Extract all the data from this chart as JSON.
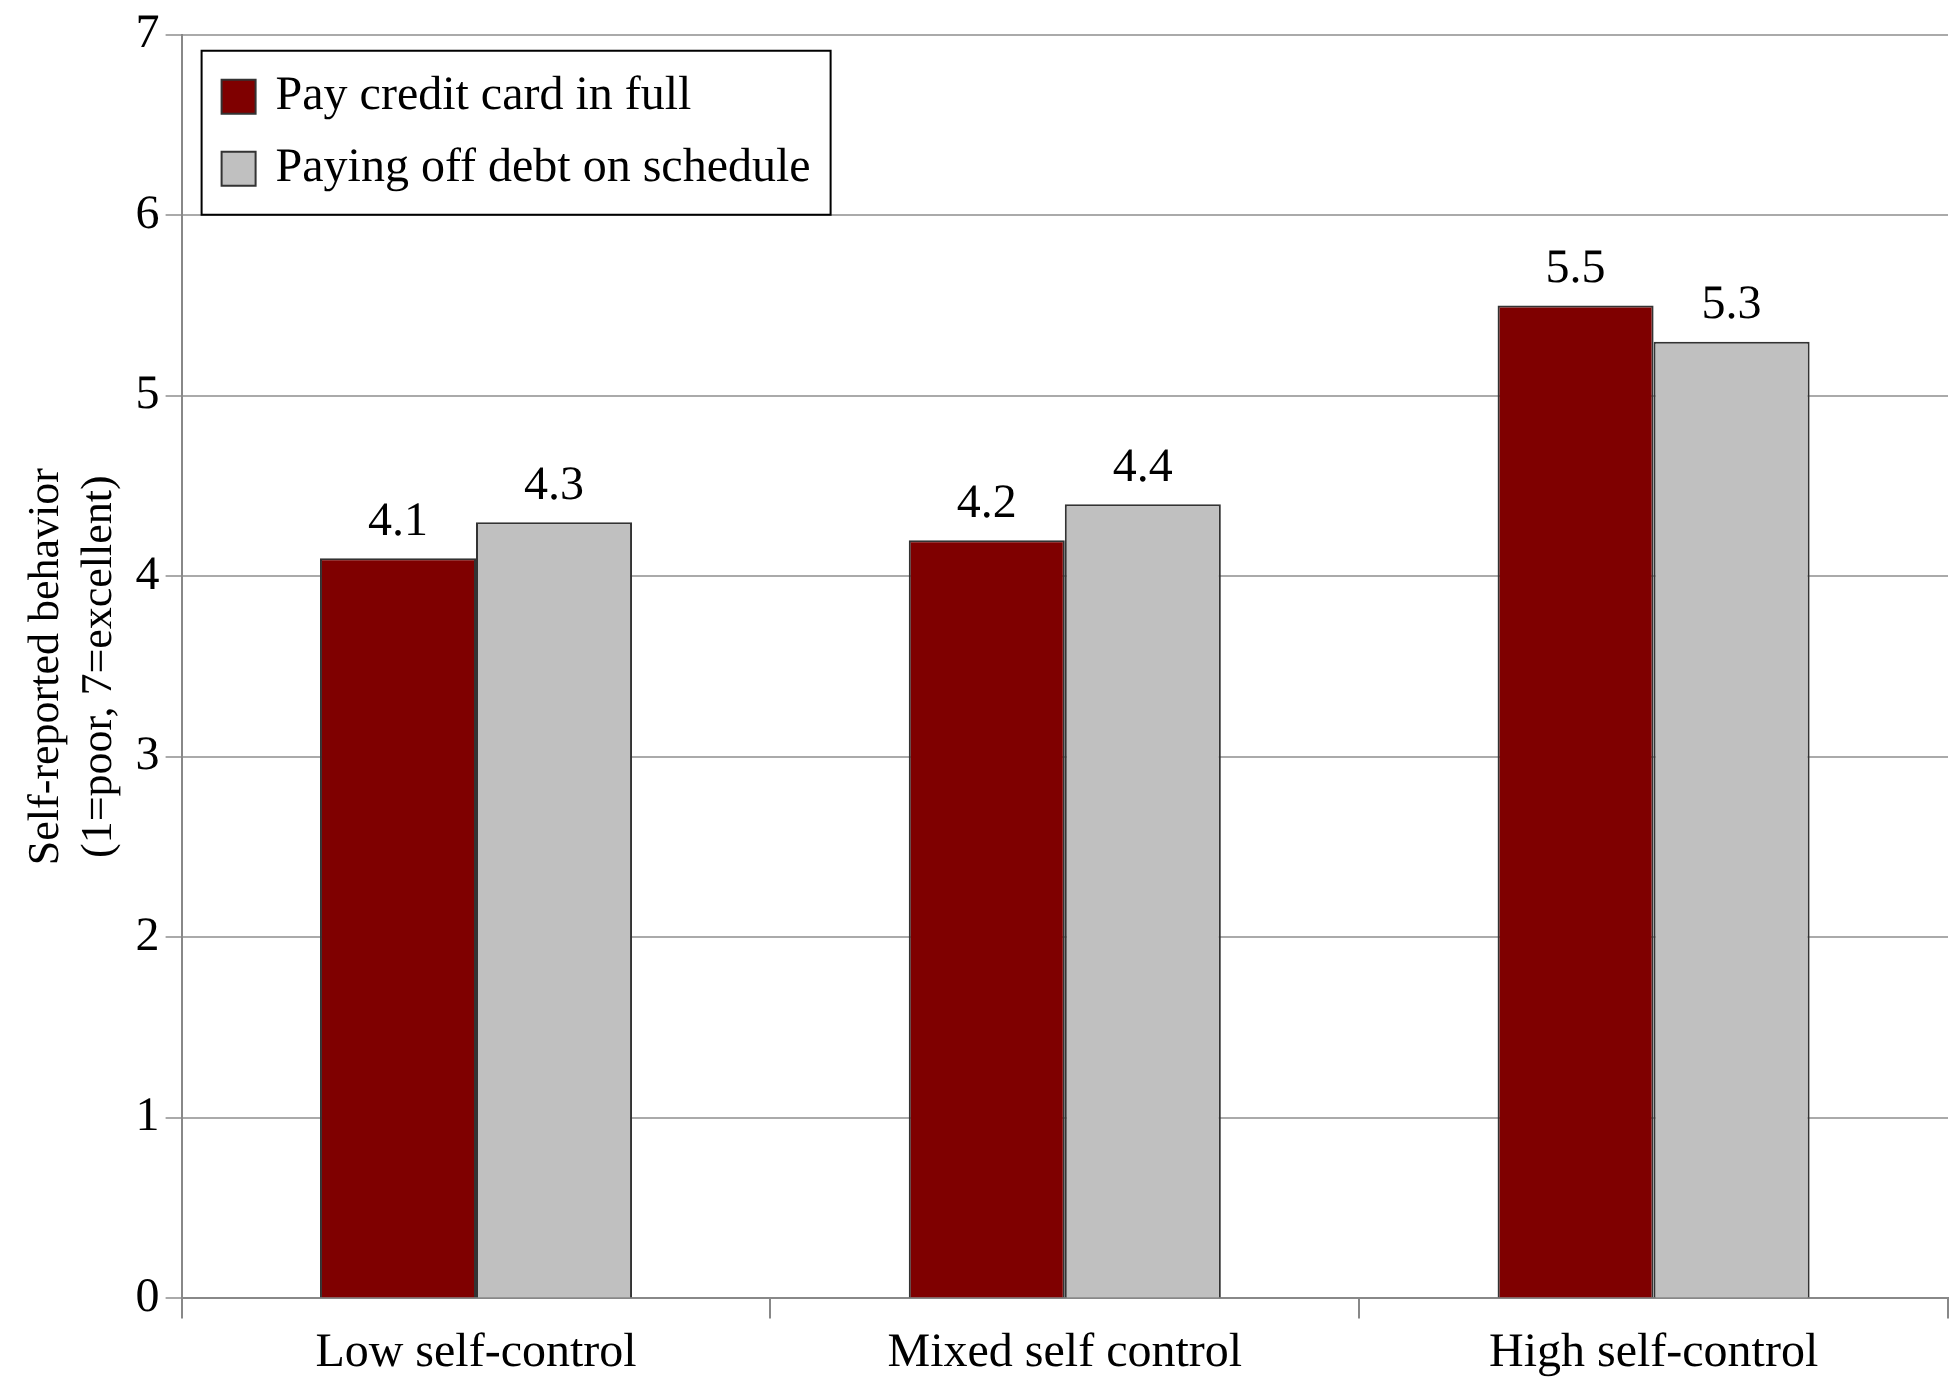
{
  "chart_data": {
    "type": "bar",
    "ylabel": "Self-reported behavior\n(1=poor, 7=excellent)",
    "categories": [
      "Low self-control",
      "Mixed self control",
      "High self-control"
    ],
    "series": [
      {
        "name": "Pay credit card in full",
        "color": "#7f0000",
        "values": [
          4.1,
          4.2,
          5.5
        ]
      },
      {
        "name": "Paying off debt on schedule",
        "color": "#c0c0c0",
        "values": [
          4.3,
          4.4,
          5.3
        ]
      }
    ],
    "ylim": [
      0,
      7
    ],
    "yticks": [
      0,
      1,
      2,
      3,
      4,
      5,
      6,
      7
    ],
    "grid": "y",
    "legend": "top left",
    "data_labels": true
  }
}
